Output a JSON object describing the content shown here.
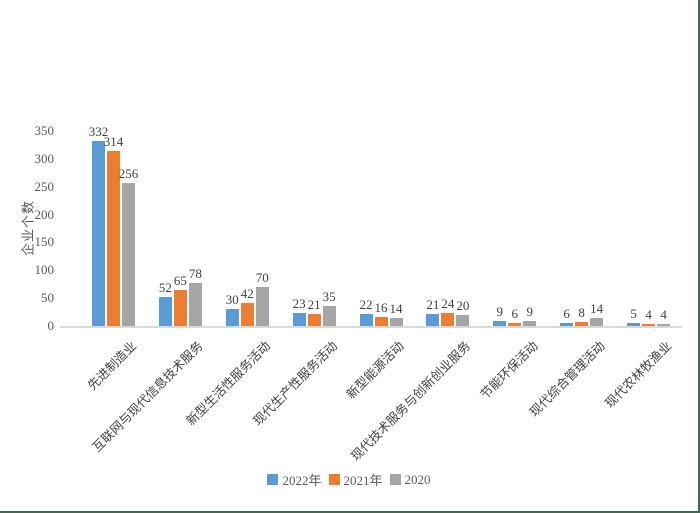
{
  "chart_data": {
    "type": "bar",
    "title": "",
    "xlabel": "",
    "ylabel": "企业个数",
    "ylim": [
      0,
      350
    ],
    "yticks": [
      0,
      50,
      100,
      150,
      200,
      250,
      300,
      350
    ],
    "grid": false,
    "legend_position": "bottom",
    "categories": [
      "先进制造业",
      "互联网与现代信息技术服务",
      "新型生活性服务活动",
      "现代生产性服务活动",
      "新型能源活动",
      "现代技术服务与创新创业服务",
      "节能环保活动",
      "现代综合管理活动",
      "现代农林牧渔业"
    ],
    "series": [
      {
        "name": "2022年",
        "color": "#5b9bd5",
        "values": [
          332,
          52,
          30,
          23,
          22,
          21,
          9,
          6,
          5
        ]
      },
      {
        "name": "2021年",
        "color": "#ed7d31",
        "values": [
          314,
          65,
          42,
          21,
          16,
          24,
          6,
          8,
          4
        ]
      },
      {
        "name": "2020",
        "color": "#a5a5a5",
        "values": [
          256,
          78,
          70,
          35,
          14,
          20,
          9,
          14,
          4
        ]
      }
    ]
  },
  "colors": {
    "axis_line": "#d9d9d9",
    "tick_text": "#595959",
    "label_text": "#3f3f3f",
    "frame_border": "#3e6b4e",
    "background": "#ffffff"
  }
}
